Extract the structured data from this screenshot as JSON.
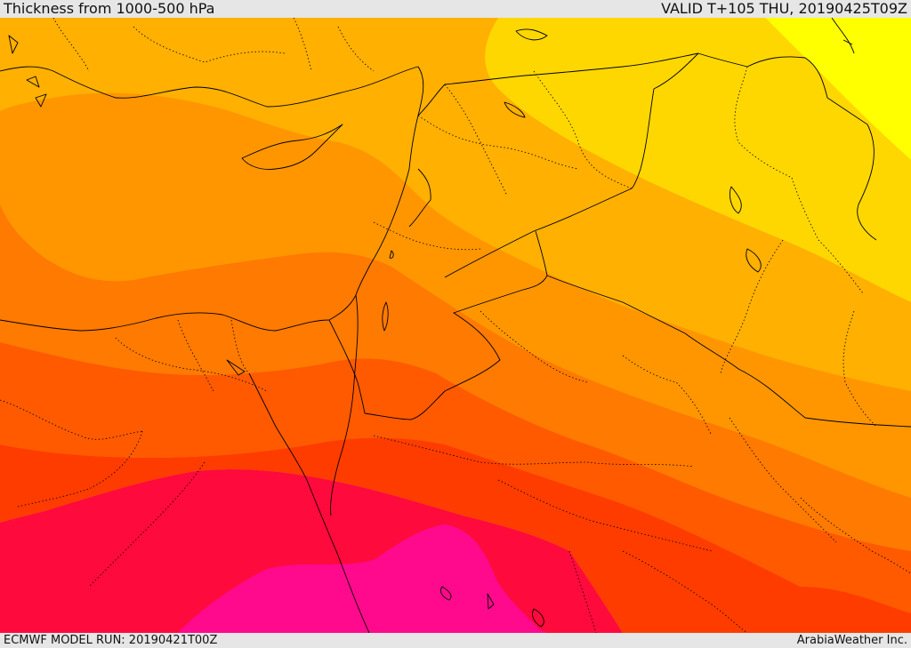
{
  "header": {
    "title": "Thickness from 1000-500 hPa",
    "valid_time": "VALID T+105 THU, 20190425T09Z"
  },
  "footer": {
    "model_run": "ECMWF MODEL RUN: 20190421T00Z",
    "credit": "ArabiaWeather Inc."
  },
  "colors": {
    "band_yellow": "#ffff00",
    "band_light_yellow": "#ffd700",
    "band_gold": "#ffb000",
    "band_orange": "#ff9600",
    "band_dark_orange": "#ff7a00",
    "band_red_orange": "#ff5a00",
    "band_red": "#ff3c00",
    "band_crimson": "#ff0a3c",
    "band_magenta": "#ff0a8c",
    "land_boundary": "#000000"
  }
}
